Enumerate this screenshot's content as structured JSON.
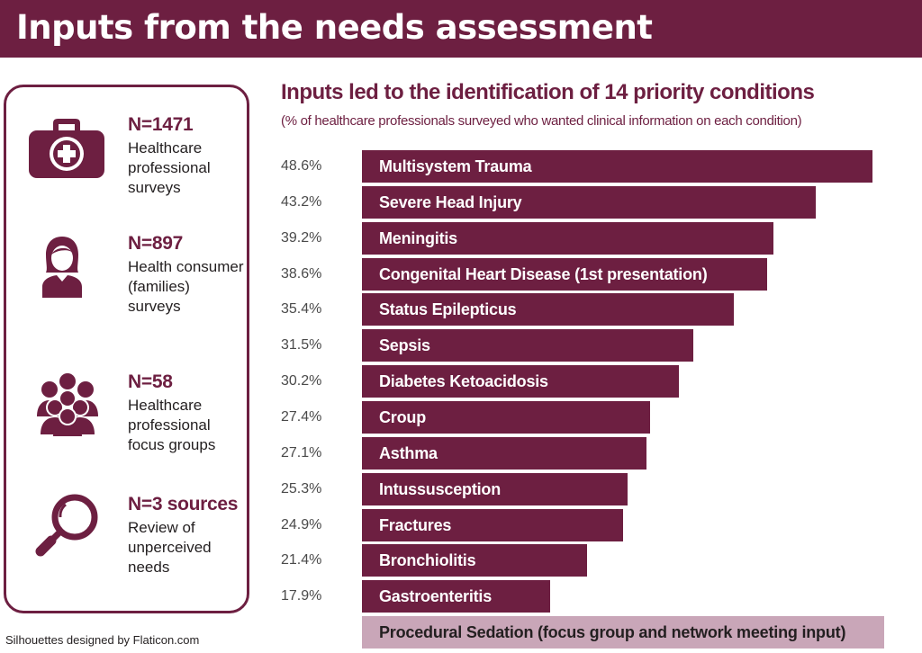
{
  "header": {
    "title": "Inputs from the needs assessment"
  },
  "sources": [
    {
      "n": "N=1471",
      "description": "Healthcare professional surveys",
      "icon": "medical-kit-icon"
    },
    {
      "n": "N=897",
      "description": "Health consumer (families) surveys",
      "icon": "person-icon"
    },
    {
      "n": "N=58",
      "description": "Healthcare professional focus groups",
      "icon": "group-icon"
    },
    {
      "n": "N=3 sources",
      "description": "Review of unperceived needs",
      "icon": "magnifier-icon"
    }
  ],
  "credit": "Silhouettes designed by Flaticon.com",
  "colors": {
    "primary": "#6d1f41",
    "secondary": "#c9a6b8"
  },
  "chart_data": {
    "type": "bar",
    "orientation": "horizontal",
    "title": "Inputs led to the identification of 14 priority conditions",
    "subtitle": "(% of healthcare professionals surveyed who wanted clinical information on each condition)",
    "xlabel": "",
    "ylabel": "",
    "xlim": [
      0,
      50
    ],
    "grid": false,
    "categories": [
      "Multisystem Trauma",
      "Severe Head Injury",
      "Meningitis",
      "Congenital Heart Disease (1st presentation)",
      "Status Epilepticus",
      "Sepsis",
      "Diabetes Ketoacidosis",
      "Croup",
      "Asthma",
      "Intussusception",
      "Fractures",
      "Bronchiolitis",
      "Gastroenteritis",
      "Procedural Sedation (focus group and network meeting input)"
    ],
    "values": [
      48.6,
      43.2,
      39.2,
      38.6,
      35.4,
      31.5,
      30.2,
      27.4,
      27.1,
      25.3,
      24.9,
      21.4,
      17.9,
      null
    ],
    "value_labels": [
      "48.6%",
      "43.2%",
      "39.2%",
      "38.6%",
      "35.4%",
      "31.5%",
      "30.2%",
      "27.4%",
      "27.1%",
      "25.3%",
      "24.9%",
      "21.4%",
      "17.9%",
      ""
    ]
  }
}
